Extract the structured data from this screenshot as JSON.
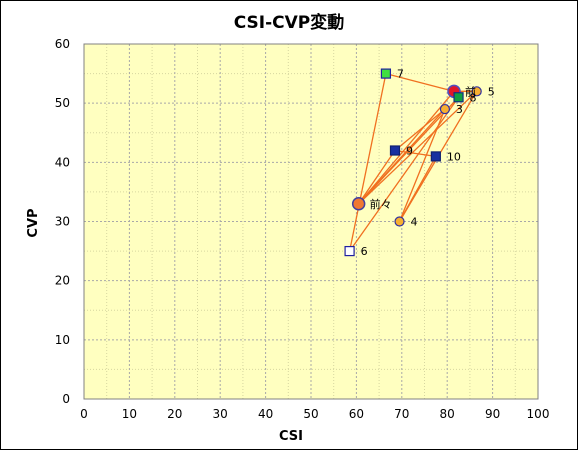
{
  "chart_data": {
    "type": "scatter",
    "title": "CSI-CVP変動",
    "xlabel": "CSI",
    "ylabel": "CVP",
    "xlim": [
      0,
      100
    ],
    "ylim": [
      0,
      60
    ],
    "xticks": [
      0,
      10,
      20,
      30,
      40,
      50,
      60,
      70,
      80,
      90,
      100
    ],
    "yticks": [
      0,
      10,
      20,
      30,
      40,
      50,
      60
    ],
    "grid": true,
    "colors": {
      "plot_bg": "#FFFFC0",
      "grid_major": "#A8A8A8",
      "grid_minor": "#D6D6A0",
      "line": "#F07020"
    },
    "points": [
      {
        "label": "前",
        "x": 81.5,
        "y": 52,
        "marker": "circle-large",
        "fill": "#E01828",
        "stroke": "#5050C0"
      },
      {
        "label": "前々",
        "x": 60.5,
        "y": 33,
        "marker": "circle-large",
        "fill": "#F07830",
        "stroke": "#4040A0"
      },
      {
        "label": "3",
        "x": 79.5,
        "y": 49,
        "marker": "circle",
        "fill": "#F8B030",
        "stroke": "#3030A0"
      },
      {
        "label": "4",
        "x": 69.5,
        "y": 30,
        "marker": "circle",
        "fill": "#F8B030",
        "stroke": "#3030A0"
      },
      {
        "label": "5",
        "x": 86.5,
        "y": 52,
        "marker": "circle",
        "fill": "#F8B030",
        "stroke": "#3030A0"
      },
      {
        "label": "6",
        "x": 58.5,
        "y": 25,
        "marker": "square",
        "fill": "#FFFFFF",
        "stroke": "#2020A0"
      },
      {
        "label": "7",
        "x": 66.5,
        "y": 55,
        "marker": "square",
        "fill": "#40E040",
        "stroke": "#2020A0"
      },
      {
        "label": "8",
        "x": 82.5,
        "y": 51,
        "marker": "square",
        "fill": "#10A040",
        "stroke": "#103080"
      },
      {
        "label": "9",
        "x": 68.5,
        "y": 42,
        "marker": "square",
        "fill": "#1830A0",
        "stroke": "#102070"
      },
      {
        "label": "10",
        "x": 77.5,
        "y": 41,
        "marker": "square",
        "fill": "#1830A0",
        "stroke": "#102070"
      }
    ],
    "segments": [
      [
        "前々",
        "前"
      ],
      [
        "前々",
        "3"
      ],
      [
        "前々",
        "5"
      ],
      [
        "前々",
        "8"
      ],
      [
        "前々",
        "9"
      ],
      [
        "3",
        "4"
      ],
      [
        "3",
        "9"
      ],
      [
        "4",
        "5"
      ],
      [
        "6",
        "7"
      ],
      [
        "6",
        "8"
      ],
      [
        "7",
        "前"
      ],
      [
        "9",
        "10"
      ],
      [
        "10",
        "4"
      ],
      [
        "前",
        "5"
      ],
      [
        "前",
        "8"
      ]
    ]
  }
}
